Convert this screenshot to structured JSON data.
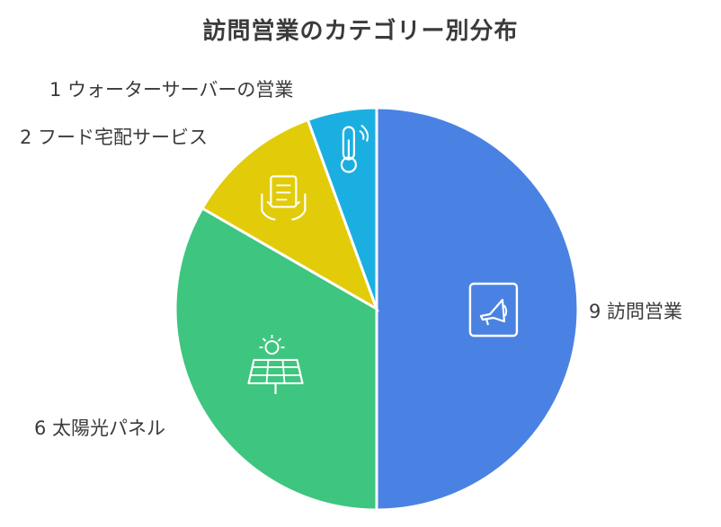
{
  "chart_data": {
    "type": "pie",
    "title": "訪問営業のカテゴリー別分布",
    "categories": [
      "訪問営業",
      "太陽光パネル",
      "フード宅配サービス",
      "ウォーターサーバーの営業"
    ],
    "values": [
      9,
      6,
      2,
      1
    ],
    "labels": [
      "9 訪問営業",
      "6 太陽光パネル",
      "2 フード宅配サービス",
      "1 ウォーターサーバーの営業"
    ],
    "colors": [
      "#4a82e3",
      "#3ec57f",
      "#e2cb09",
      "#1bafe1"
    ],
    "icons": [
      "megaphone-document-icon",
      "solar-panel-icon",
      "delivery-box-icon",
      "thermometer-icon"
    ]
  }
}
